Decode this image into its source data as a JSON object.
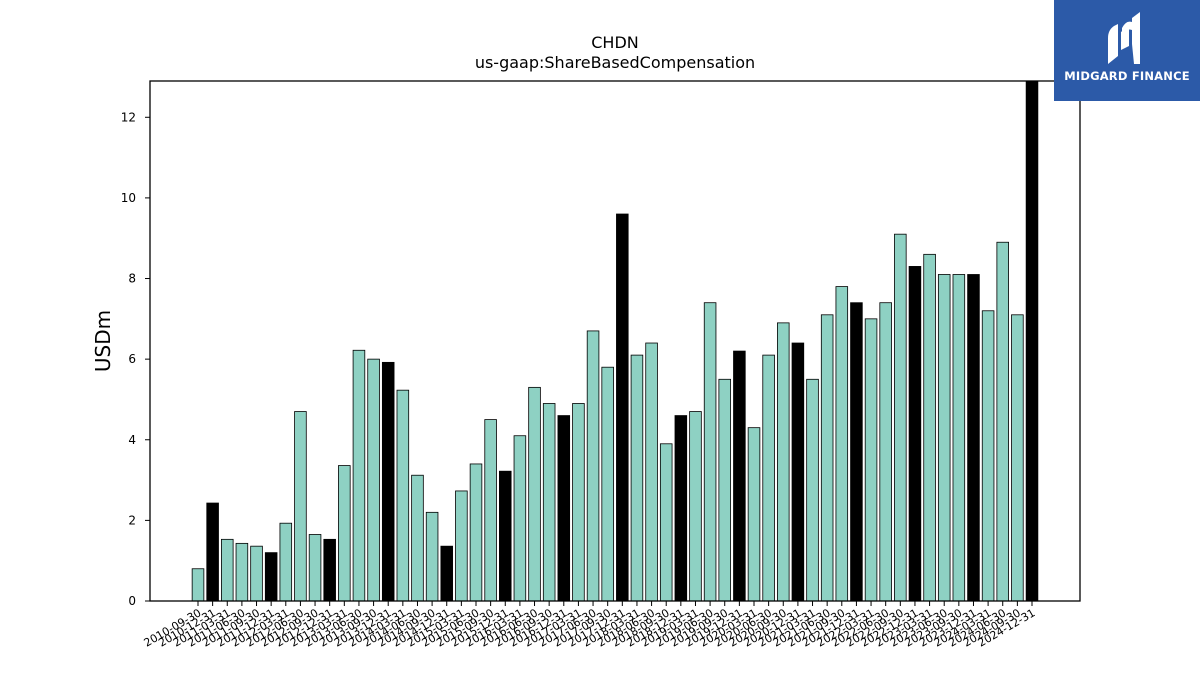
{
  "chart_data": {
    "type": "bar",
    "title": "CHDN",
    "subtitle": "us-gaap:ShareBasedCompensation",
    "xlabel": "",
    "ylabel": "USDm",
    "ylim": [
      0,
      12.9
    ],
    "yticks": [
      0,
      2,
      4,
      6,
      8,
      10,
      12
    ],
    "grid": false,
    "colors": {
      "quarter": "#8ed1c3",
      "year_end": "#000000",
      "edge": "#000000"
    },
    "categories": [
      "2010-09-30",
      "2010-12-31",
      "2011-03-31",
      "2011-06-30",
      "2011-09-30",
      "2011-12-31",
      "2012-03-31",
      "2012-06-30",
      "2012-09-30",
      "2012-12-31",
      "2013-03-31",
      "2013-06-30",
      "2013-09-30",
      "2013-12-31",
      "2014-03-31",
      "2014-06-30",
      "2014-09-30",
      "2014-12-31",
      "2015-03-31",
      "2015-06-30",
      "2015-09-30",
      "2015-12-31",
      "2016-03-31",
      "2016-06-30",
      "2016-09-30",
      "2016-12-31",
      "2017-03-31",
      "2017-06-30",
      "2017-09-30",
      "2017-12-31",
      "2018-03-31",
      "2018-06-30",
      "2018-09-30",
      "2018-12-31",
      "2019-03-31",
      "2019-06-30",
      "2019-09-30",
      "2019-12-31",
      "2020-03-31",
      "2020-06-30",
      "2020-09-30",
      "2020-12-31",
      "2021-03-31",
      "2021-06-30",
      "2021-09-30",
      "2021-12-31",
      "2022-03-31",
      "2022-06-30",
      "2022-09-30",
      "2022-12-31",
      "2023-03-31",
      "2023-06-30",
      "2023-09-30",
      "2023-12-31",
      "2024-03-31",
      "2024-06-30",
      "2024-09-30",
      "2024-12-31"
    ],
    "values": [
      0.8,
      2.43,
      1.53,
      1.43,
      1.36,
      1.2,
      1.93,
      4.7,
      1.65,
      1.53,
      3.36,
      6.22,
      6.0,
      5.92,
      5.23,
      3.12,
      2.2,
      1.36,
      2.73,
      3.4,
      4.5,
      3.22,
      4.1,
      5.3,
      4.9,
      4.6,
      4.9,
      6.7,
      5.8,
      9.6,
      6.1,
      6.4,
      3.9,
      4.6,
      4.7,
      7.4,
      5.5,
      6.2,
      4.3,
      6.1,
      6.9,
      6.4,
      5.5,
      7.1,
      7.8,
      7.4,
      7.0,
      7.4,
      9.1,
      8.3,
      8.6,
      8.1,
      8.1,
      8.1,
      7.2,
      8.9,
      7.1,
      12.9
    ]
  },
  "watermark": {
    "text": "MIDGARD FINANCE",
    "color": "#2c5aa8"
  }
}
